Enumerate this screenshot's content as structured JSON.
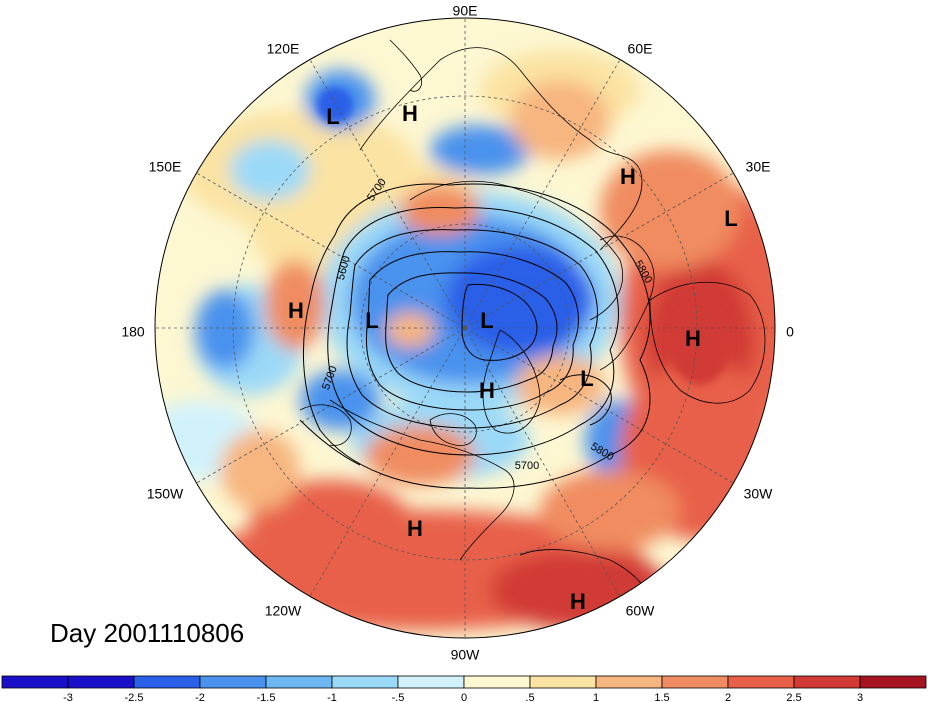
{
  "title": "Day 2001110806",
  "longitude_labels": [
    "90E",
    "60E",
    "30E",
    "0",
    "30W",
    "60W",
    "90W",
    "120W",
    "150W",
    "180",
    "150E",
    "120E"
  ],
  "pressure_centers": [
    {
      "letter": "L"
    },
    {
      "letter": "H"
    },
    {
      "letter": "H"
    },
    {
      "letter": "L"
    },
    {
      "letter": "H"
    },
    {
      "letter": "L"
    },
    {
      "letter": "L"
    },
    {
      "letter": "H"
    },
    {
      "letter": "L"
    },
    {
      "letter": "H"
    },
    {
      "letter": "H"
    },
    {
      "letter": "H"
    }
  ],
  "contour_labels": [
    "5700",
    "5600",
    "5800",
    "5700",
    "5700",
    "5800"
  ],
  "colorbar": {
    "tick_labels": [
      "-3",
      "-2.5",
      "-2",
      "-1.5",
      "-1",
      "-.5",
      "0",
      ".5",
      "1",
      "1.5",
      "2",
      "2.5",
      "3"
    ],
    "colors": [
      "#1a10c9",
      "#2a5fe8",
      "#4a92ee",
      "#6db8f2",
      "#9bd9f8",
      "#d2f2fb",
      "#fdf7d2",
      "#fbe3a3",
      "#f7b57f",
      "#f08c61",
      "#e86048",
      "#d13a35",
      "#a51420"
    ]
  },
  "map_colors": {
    "blue_dark": "#2a5fe8",
    "blue_mid": "#4a92ee",
    "blue_light": "#9bd9f8",
    "blue_pale": "#d2f2fb",
    "cream": "#fdf7d2",
    "yellow": "#fbe3a3",
    "orange": "#f7b57f",
    "red_light": "#f08c61",
    "red": "#e86048",
    "red_dark": "#d13a35"
  }
}
